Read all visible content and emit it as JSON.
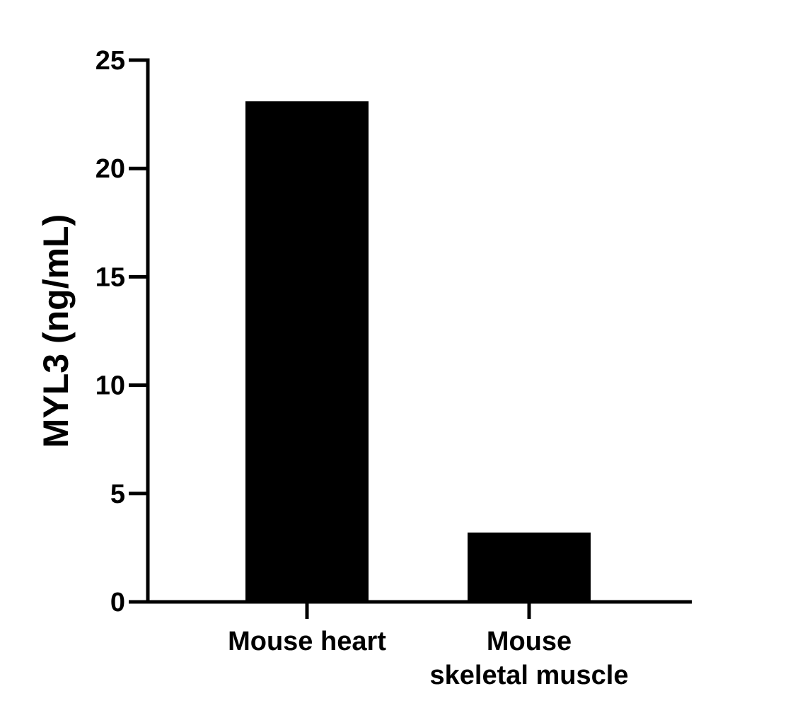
{
  "chart_data": {
    "type": "bar",
    "title": "",
    "xlabel": "",
    "ylabel": "MYL3 (ng/mL)",
    "ylim": [
      0,
      25
    ],
    "yticks": [
      0,
      5,
      10,
      15,
      20,
      25
    ],
    "categories": [
      {
        "lines": [
          "Mouse heart"
        ]
      },
      {
        "lines": [
          "Mouse",
          "skeletal muscle"
        ]
      }
    ],
    "values": [
      23.1,
      3.2
    ],
    "bar_color": "#000000",
    "axis_color": "#000000",
    "grid": false,
    "legend": "none"
  }
}
